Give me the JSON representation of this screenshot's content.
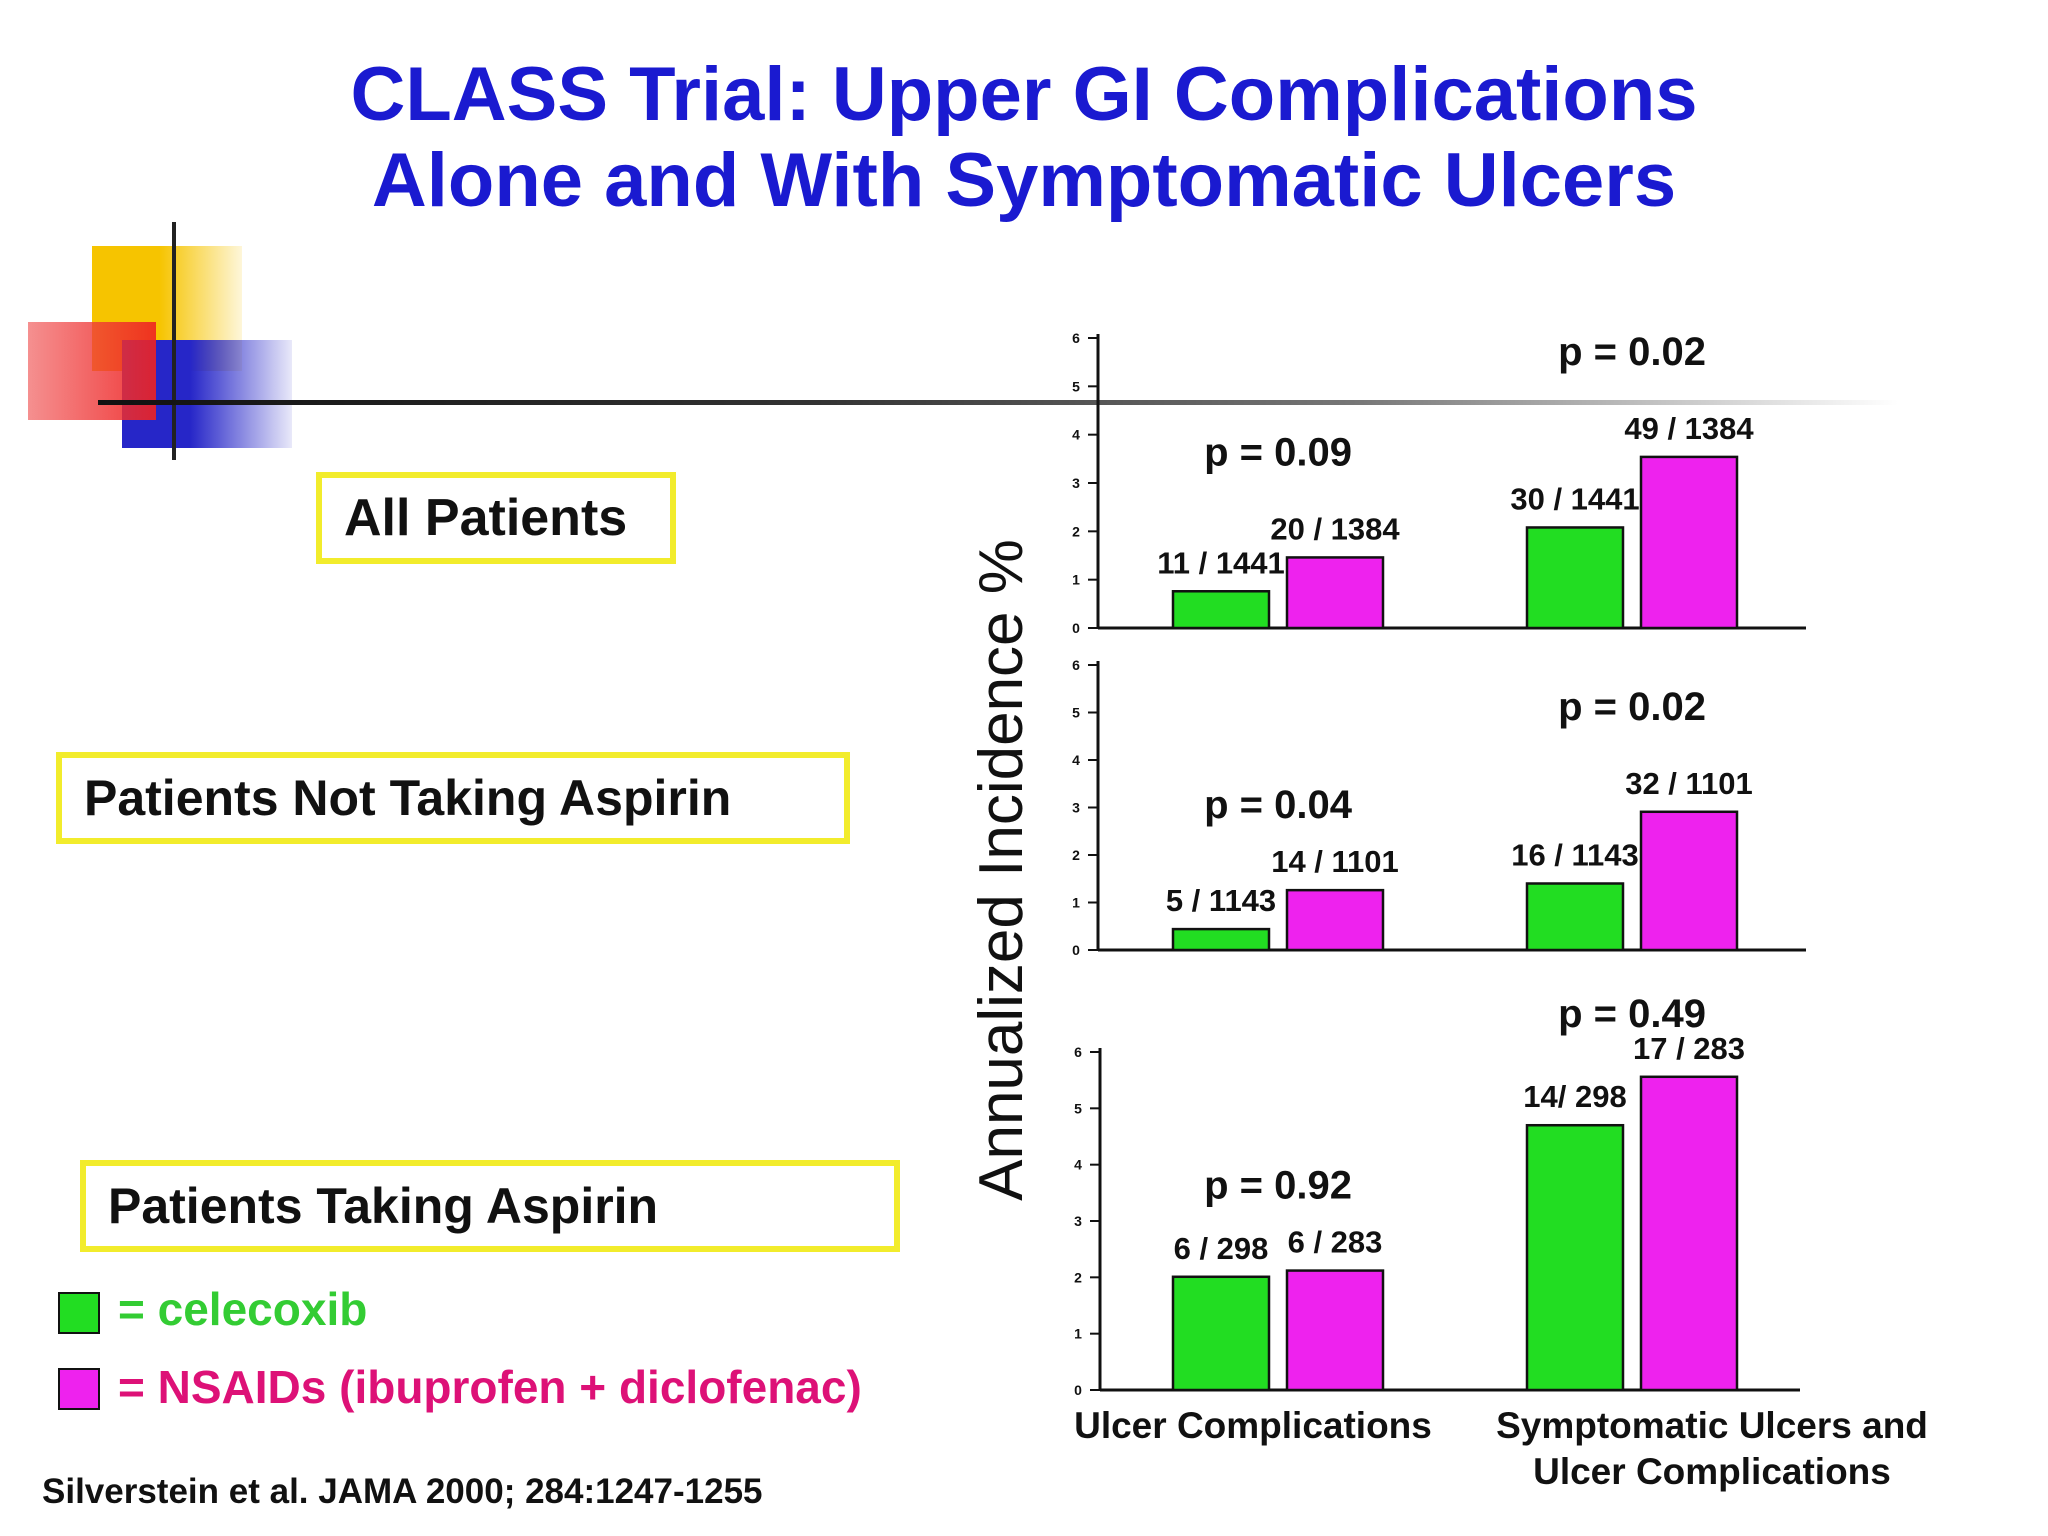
{
  "title": {
    "line1": "CLASS Trial: Upper GI Complications",
    "line2": "Alone and With Symptomatic Ulcers"
  },
  "group_labels": {
    "all": "All Patients",
    "no_aspirin": "Patients Not Taking Aspirin",
    "aspirin": "Patients Taking Aspirin"
  },
  "legend": {
    "celecoxib": "= celecoxib",
    "nsaids": "= NSAIDs (ibuprofen + diclofenac)"
  },
  "citation": "Silverstein et al. JAMA 2000; 284:1247-1255",
  "colors": {
    "title": "#1a1ad0",
    "celecoxib": "#22dd22",
    "nsaids": "#ee22ee",
    "celecoxib_text": "#33cc33",
    "nsaids_text": "#dd1177",
    "label_box_border": "#f2ec2c"
  },
  "chart_data": {
    "type": "bar",
    "ylabel": "Annualized Incidence  %",
    "yticks": [
      "0",
      "1",
      "2",
      "3",
      "4",
      "5",
      "6"
    ],
    "ylim": [
      0,
      6
    ],
    "categories": [
      "Ulcer Complications",
      "Symptomatic Ulcers and Ulcer Complications"
    ],
    "category_labels": [
      [
        "Ulcer Complications"
      ],
      [
        "Symptomatic Ulcers and",
        "Ulcer Complications"
      ]
    ],
    "series": [
      {
        "name": "celecoxib",
        "color": "#22dd22"
      },
      {
        "name": "NSAIDs (ibuprofen + diclofenac)",
        "color": "#ee22ee"
      }
    ],
    "panels": [
      {
        "group": "All Patients",
        "values": [
          [
            0.76,
            1.46
          ],
          [
            2.08,
            3.54
          ]
        ],
        "labels": [
          [
            "11 / 1441",
            "20 / 1384"
          ],
          [
            "30 / 1441",
            "49 / 1384"
          ]
        ],
        "pvalues": [
          "p = 0.09",
          "p = 0.02"
        ]
      },
      {
        "group": "Patients Not Taking Aspirin",
        "values": [
          [
            0.44,
            1.26
          ],
          [
            1.4,
            2.91
          ]
        ],
        "labels": [
          [
            "5 / 1143",
            "14 / 1101"
          ],
          [
            "16 / 1143",
            "32 / 1101"
          ]
        ],
        "pvalues": [
          "p = 0.04",
          "p = 0.02"
        ]
      },
      {
        "group": "Patients Taking Aspirin",
        "values": [
          [
            2.01,
            2.12
          ],
          [
            4.7,
            5.56
          ]
        ],
        "labels": [
          [
            "6 / 298",
            "6 / 283"
          ],
          [
            "14/ 298",
            "17 / 283"
          ]
        ],
        "pvalues": [
          "p = 0.92",
          "p = 0.49"
        ]
      }
    ]
  }
}
